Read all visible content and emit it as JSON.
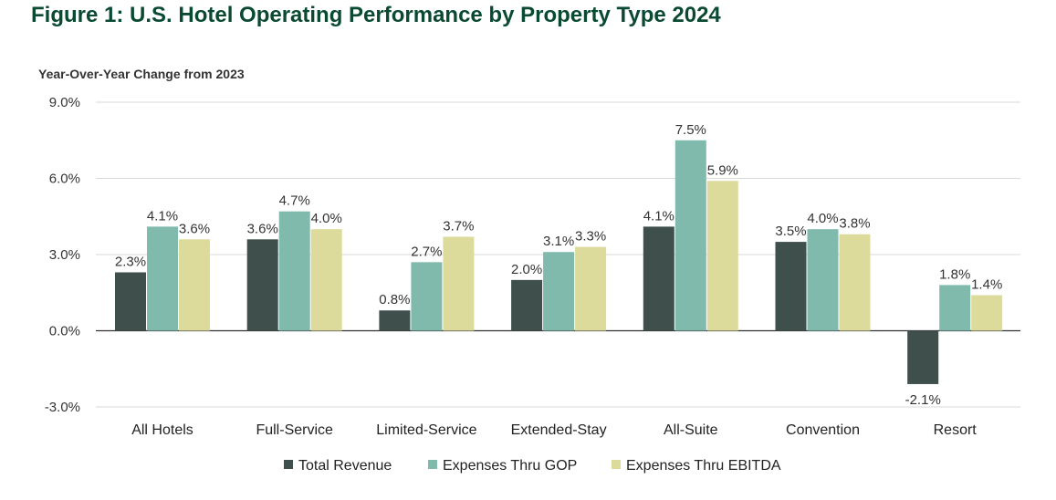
{
  "figure_title": "Figure 1: U.S. Hotel Operating Performance by Property Type 2024",
  "chart_data": {
    "type": "bar",
    "title": "Figure 1: U.S. Hotel Operating Performance by Property Type 2024",
    "ylabel": "Year-Over-Year Change from 2023",
    "xlabel": "",
    "ylim": [
      -3.0,
      9.0
    ],
    "yticks": [
      -3.0,
      0.0,
      3.0,
      6.0,
      9.0
    ],
    "ytick_labels": [
      "-3.0%",
      "0.0%",
      "3.0%",
      "6.0%",
      "9.0%"
    ],
    "grid": true,
    "legend_position": "bottom",
    "categories": [
      "All Hotels",
      "Full-Service",
      "Limited-Service",
      "Extended-Stay",
      "All-Suite",
      "Convention",
      "Resort"
    ],
    "series": [
      {
        "name": "Total Revenue",
        "color": "#3f4f4c",
        "values": [
          2.3,
          3.6,
          0.8,
          2.0,
          4.1,
          3.5,
          -2.1
        ],
        "labels": [
          "2.3%",
          "3.6%",
          "0.8%",
          "2.0%",
          "4.1%",
          "3.5%",
          "-2.1%"
        ]
      },
      {
        "name": "Expenses Thru GOP",
        "color": "#7fbaad",
        "values": [
          4.1,
          4.7,
          2.7,
          3.1,
          7.5,
          4.0,
          1.8
        ],
        "labels": [
          "4.1%",
          "4.7%",
          "2.7%",
          "3.1%",
          "7.5%",
          "4.0%",
          "1.8%"
        ]
      },
      {
        "name": "Expenses Thru EBITDA",
        "color": "#dcdb9c",
        "values": [
          3.6,
          4.0,
          3.7,
          3.3,
          5.9,
          3.8,
          1.4
        ],
        "labels": [
          "3.6%",
          "4.0%",
          "3.7%",
          "3.3%",
          "5.9%",
          "3.8%",
          "1.4%"
        ]
      }
    ]
  }
}
